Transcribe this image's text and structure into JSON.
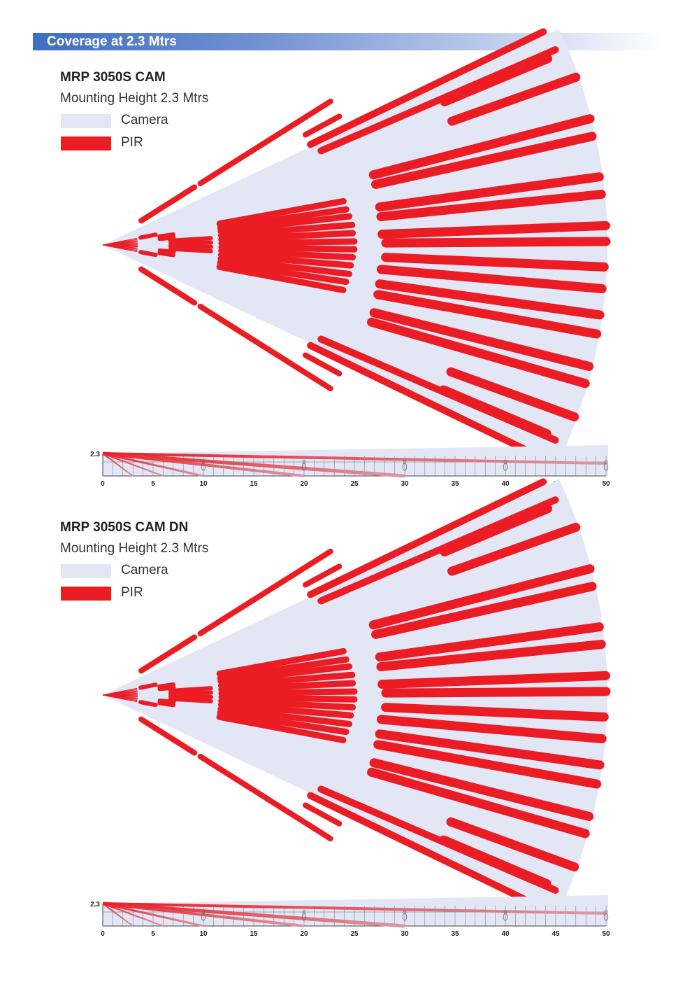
{
  "header": {
    "title": "Coverage at 2.3 Mtrs"
  },
  "colors": {
    "camera": "#e3e7f5",
    "pir": "#ec1c24",
    "header_blue": "#3e6fc0"
  },
  "legend": {
    "camera_label": "Camera",
    "pir_label": "PIR"
  },
  "sections": [
    {
      "model": "MRP 3050S CAM",
      "mounting": "Mounting Height 2.3 Mtrs"
    },
    {
      "model": "MRP 3050S CAM DN",
      "mounting": "Mounting Height 2.3 Mtrs"
    }
  ],
  "side_view": {
    "height_label": "2.3",
    "x_ticks": [
      "0",
      "5",
      "10",
      "15",
      "20",
      "25",
      "30",
      "35",
      "40",
      "45",
      "50"
    ],
    "xlim": [
      0,
      50
    ],
    "figures_at": [
      10,
      20,
      30,
      40,
      50
    ]
  }
}
